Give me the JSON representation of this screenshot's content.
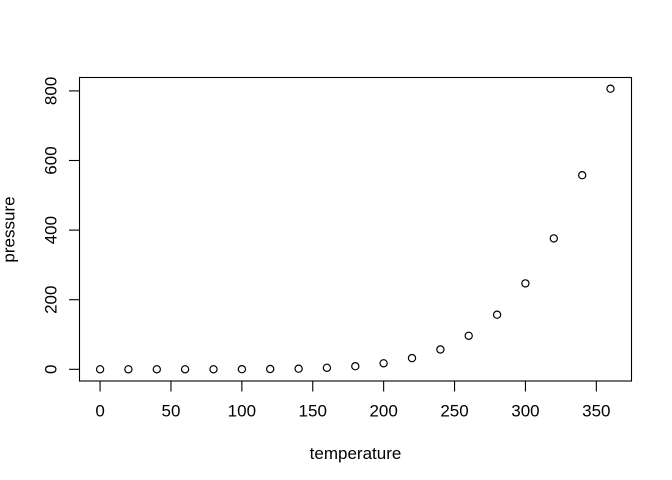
{
  "figure": {
    "background": "#ffffff",
    "foreground": "#000000"
  },
  "chart_data": {
    "type": "scatter",
    "title": "",
    "xlabel": "temperature",
    "ylabel": "pressure",
    "x": [
      0,
      20,
      40,
      60,
      80,
      100,
      120,
      140,
      160,
      180,
      200,
      220,
      240,
      260,
      280,
      300,
      320,
      340,
      360
    ],
    "y": [
      0.0002,
      0.0012,
      0.006,
      0.03,
      0.09,
      0.27,
      0.75,
      1.85,
      4.2,
      8.8,
      17.3,
      32.1,
      56.9,
      96.3,
      157.0,
      246.8,
      376.3,
      557.9,
      806.2
    ],
    "x_ticks": [
      0,
      50,
      100,
      150,
      200,
      250,
      300,
      350
    ],
    "y_ticks": [
      0,
      200,
      400,
      600,
      800
    ],
    "xlim": [
      -14.5,
      374.8
    ],
    "ylim": [
      -33.6,
      838.5
    ],
    "grid": false,
    "legend": null,
    "marker": "open-circle",
    "marker_color": "#000000",
    "box": true
  }
}
